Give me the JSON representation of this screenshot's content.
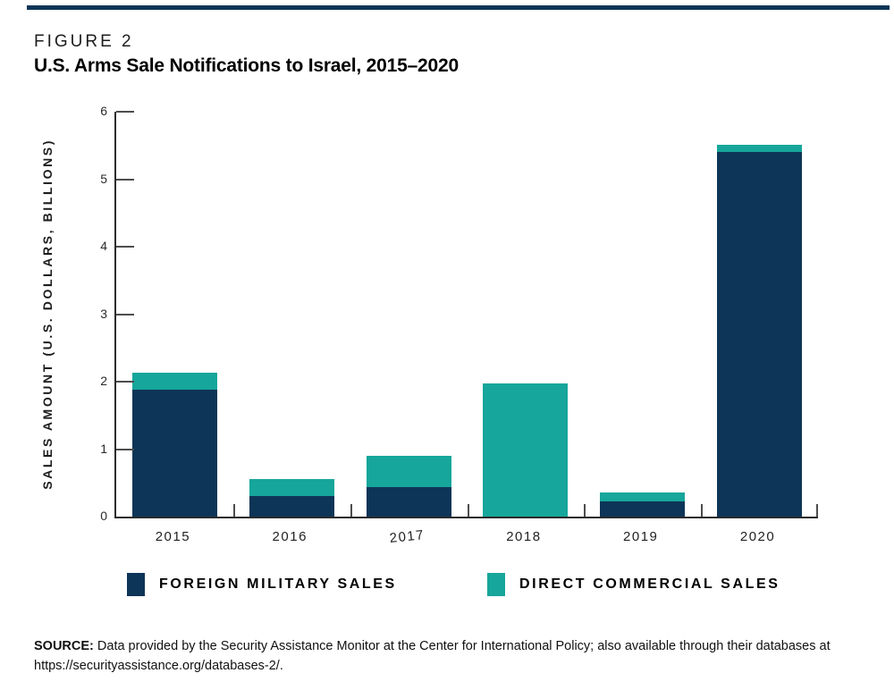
{
  "page": {
    "top_rule_color": "#0d3557",
    "background": "#ffffff"
  },
  "figure": {
    "label": "FIGURE 2",
    "title": "U.S. Arms Sale Notifications to Israel, 2015–2020"
  },
  "chart_data": {
    "type": "bar",
    "stacked": true,
    "title": "U.S. Arms Sale Notifications to Israel, 2015–2020",
    "categories": [
      "2015",
      "2016",
      "2017",
      "2018",
      "2019",
      "2020"
    ],
    "series": [
      {
        "name": "FOREIGN MILITARY SALES",
        "color": "#0d3557",
        "values": [
          1.88,
          0.3,
          0.44,
          0.0,
          0.23,
          5.4
        ]
      },
      {
        "name": "DIRECT COMMERCIAL SALES",
        "color": "#17a69b",
        "values": [
          0.25,
          0.25,
          0.46,
          1.97,
          0.13,
          0.11
        ]
      }
    ],
    "xlabel": "",
    "ylabel": "SALES AMOUNT (U.S. DOLLARS, BILLIONS)",
    "ylim": [
      0,
      6
    ],
    "yticks": [
      0,
      1,
      2,
      3,
      4,
      5,
      6
    ],
    "grid": false,
    "legend_position": "bottom",
    "tick_direction": "in"
  },
  "legend": {
    "items": [
      {
        "label": "FOREIGN MILITARY SALES"
      },
      {
        "label": "DIRECT COMMERCIAL SALES"
      }
    ]
  },
  "source": {
    "prefix": "SOURCE:",
    "text": " Data provided by the Security Assistance Monitor at the Center for International Policy; also available through their databases at https://securityassistance.org/databases-2/."
  }
}
